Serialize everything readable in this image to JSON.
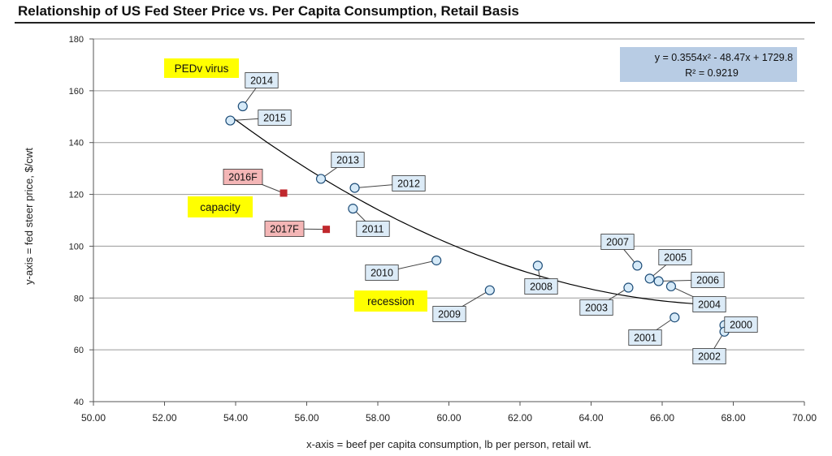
{
  "chart_data": {
    "type": "scatter",
    "title": "Relationship of US Fed Steer Price vs. Per Capita Consumption, Retail Basis",
    "xlabel": "x-axis = beef per capita consumption, lb per person, retail wt.",
    "ylabel": "y-axis = fed steer price, $/cwt",
    "xlim": [
      50,
      70
    ],
    "ylim": [
      40,
      180
    ],
    "x_ticks": [
      50,
      52,
      54,
      56,
      58,
      60,
      62,
      64,
      66,
      68,
      70
    ],
    "x_tick_labels": [
      "50.00",
      "52.00",
      "54.00",
      "56.00",
      "58.00",
      "60.00",
      "62.00",
      "64.00",
      "66.00",
      "68.00",
      "70.00"
    ],
    "y_ticks": [
      40,
      60,
      80,
      100,
      120,
      140,
      160,
      180
    ],
    "y_tick_labels": [
      "40",
      "60",
      "80",
      "100",
      "120",
      "140",
      "160",
      "180"
    ],
    "grid": "horizontal",
    "series": [
      {
        "marker": "open-circle",
        "points": [
          {
            "label": "2000",
            "x": 67.75,
            "y": 69.5
          },
          {
            "label": "2001",
            "x": 66.35,
            "y": 72.5
          },
          {
            "label": "2002",
            "x": 67.75,
            "y": 67.0
          },
          {
            "label": "2003",
            "x": 65.05,
            "y": 84.0
          },
          {
            "label": "2004",
            "x": 66.25,
            "y": 84.5
          },
          {
            "label": "2005",
            "x": 65.65,
            "y": 87.5
          },
          {
            "label": "2006",
            "x": 65.9,
            "y": 86.5
          },
          {
            "label": "2007",
            "x": 65.3,
            "y": 92.5
          },
          {
            "label": "2008",
            "x": 62.5,
            "y": 92.5
          },
          {
            "label": "2009",
            "x": 61.15,
            "y": 83.0
          },
          {
            "label": "2010",
            "x": 59.65,
            "y": 94.5
          },
          {
            "label": "2011",
            "x": 57.3,
            "y": 114.5
          },
          {
            "label": "2012",
            "x": 57.35,
            "y": 122.5
          },
          {
            "label": "2013",
            "x": 56.4,
            "y": 126.0
          },
          {
            "label": "2014",
            "x": 54.2,
            "y": 154.0
          },
          {
            "label": "2015",
            "x": 53.85,
            "y": 148.5
          }
        ]
      },
      {
        "marker": "filled-square",
        "points": [
          {
            "label": "2016F",
            "x": 55.35,
            "y": 120.5
          },
          {
            "label": "2017F",
            "x": 56.55,
            "y": 106.5
          }
        ]
      }
    ],
    "trendline": {
      "type": "polynomial",
      "coefficients": [
        0.3554,
        -48.47,
        1729.8
      ],
      "x_range": [
        53.85,
        67.75
      ]
    },
    "equation_box": {
      "line1": "y = 0.3554x² - 48.47x + 1729.8",
      "line2": "R² = 0.9219"
    },
    "annotations": [
      {
        "id": "pedv",
        "text": "PEDv virus"
      },
      {
        "id": "capacity",
        "text": "capacity"
      },
      {
        "id": "recession",
        "text": "recession"
      }
    ]
  },
  "colors": {
    "marker_open_fill": "#d6eaf8",
    "marker_open_stroke": "#1f4e79",
    "marker_square": "#c0282d",
    "label_blue_bg": "#dcebf7",
    "label_red_bg": "#f4b6b6",
    "annotation_bg": "#ffff00",
    "equation_bg": "#b8cce4",
    "grid": "#9a9a9a",
    "trendline": "#000000"
  }
}
